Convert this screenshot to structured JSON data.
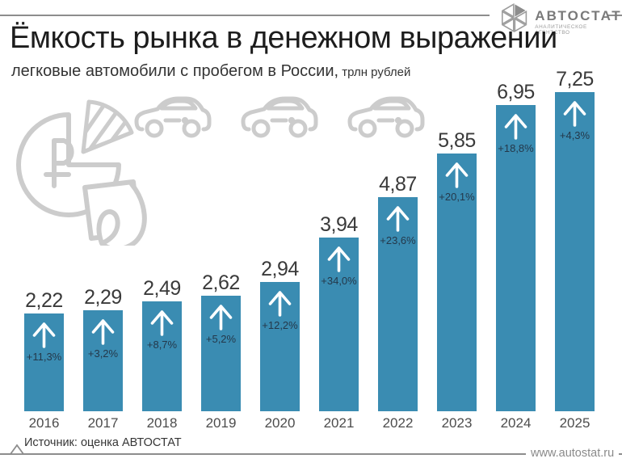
{
  "page": {
    "title": "Ёмкость рынка в денежном выражении",
    "subtitle": "легковые автомобили с пробегом в России,",
    "subtitle_unit": " трлн рублей",
    "source": "Источник: оценка АВТОСТАТ",
    "website": "www.autostat.ru"
  },
  "logo": {
    "name": "АВТОСТАТ",
    "tagline": "АНАЛИТИЧЕСКОЕ АГЕНТСТВО"
  },
  "colors": {
    "bar": "#3a8cb2",
    "growth_text": "#24384a",
    "value_text": "#3a3a3a",
    "watermark": "#cccccc",
    "rule": "#8d8d8d"
  },
  "chart_data": {
    "type": "bar",
    "title": "Ёмкость рынка в денежном выражении",
    "subtitle": "легковые автомобили с пробегом в России, трлн рублей",
    "xlabel": "",
    "ylabel": "трлн рублей",
    "ylim": [
      0,
      7.5
    ],
    "grid": false,
    "legend": false,
    "categories": [
      "2016",
      "2017",
      "2018",
      "2019",
      "2020",
      "2021",
      "2022",
      "2023",
      "2024",
      "2025"
    ],
    "values": [
      2.22,
      2.29,
      2.49,
      2.62,
      2.94,
      3.94,
      4.87,
      5.85,
      6.95,
      7.25
    ],
    "value_labels": [
      "2,22",
      "2,29",
      "2,49",
      "2,62",
      "2,94",
      "3,94",
      "4,87",
      "5,85",
      "6,95",
      "7,25"
    ],
    "growth_labels": [
      "+11,3%",
      "+3,2%",
      "+8,7%",
      "+5,2%",
      "+12,2%",
      "+34,0%",
      "+23,6%",
      "+20,1%",
      "+18,8%",
      "+4,3%"
    ],
    "annotation": "каждый столбец содержит стрелку роста и процент прироста к предыдущему году"
  }
}
